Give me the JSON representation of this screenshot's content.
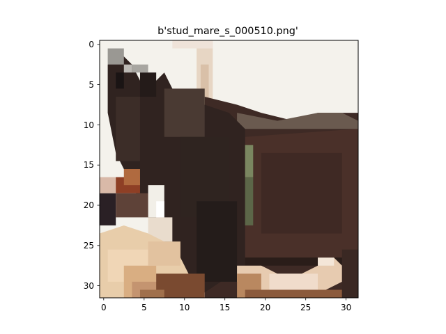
{
  "figure": {
    "title": "b'stud_mare_s_000510.png'"
  },
  "axes": {
    "x_ticks": [
      "0",
      "5",
      "10",
      "15",
      "20",
      "25",
      "30"
    ],
    "y_ticks": [
      "0",
      "5",
      "10",
      "15",
      "20",
      "25",
      "30"
    ],
    "xlim": [
      -0.5,
      31.5
    ],
    "ylim": [
      31.5,
      -0.5
    ]
  },
  "image": {
    "description_colors": {
      "sky": "#f5f3ee",
      "horse_dark": "#3a2a26",
      "horse_mid": "#4b362e",
      "horse_shadow": "#201815",
      "pale_patch": "#ead2b6",
      "tan": "#c9a27a",
      "stripe_green": "#6e7a55",
      "reddish": "#8a3a22"
    }
  }
}
